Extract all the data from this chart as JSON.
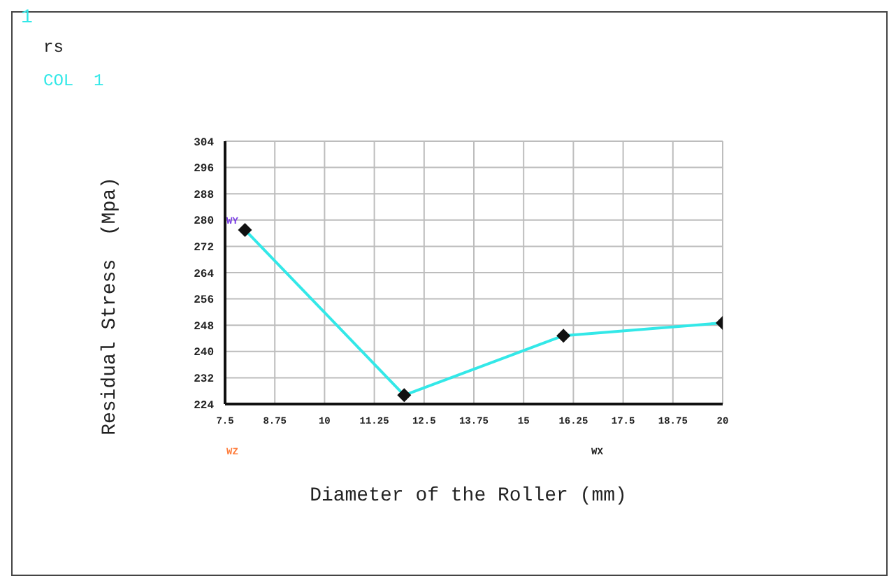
{
  "chart_data": {
    "type": "line",
    "xlabel": "Diameter of the Roller (mm)",
    "ylabel": "Residual Stress  (Mpa)",
    "annotations": [
      "1",
      "rs",
      "COL  1",
      "WY",
      "WZ",
      "WX"
    ],
    "x": [
      8,
      12,
      16,
      20
    ],
    "series": [
      {
        "color": "#33e8e8",
        "values": [
          277,
          226.7,
          244.8,
          248.7
        ]
      }
    ],
    "xlim": [
      7.5,
      20
    ],
    "xticks": [
      7.5,
      8.75,
      10,
      11.25,
      12.5,
      13.75,
      15,
      16.25,
      17.5,
      18.75,
      20
    ],
    "ylim": [
      224,
      304
    ],
    "yticks": [
      224,
      232,
      240,
      248,
      256,
      264,
      272,
      280,
      288,
      296,
      304
    ],
    "grid": true,
    "marker": "diamond",
    "line_style": "solid"
  }
}
